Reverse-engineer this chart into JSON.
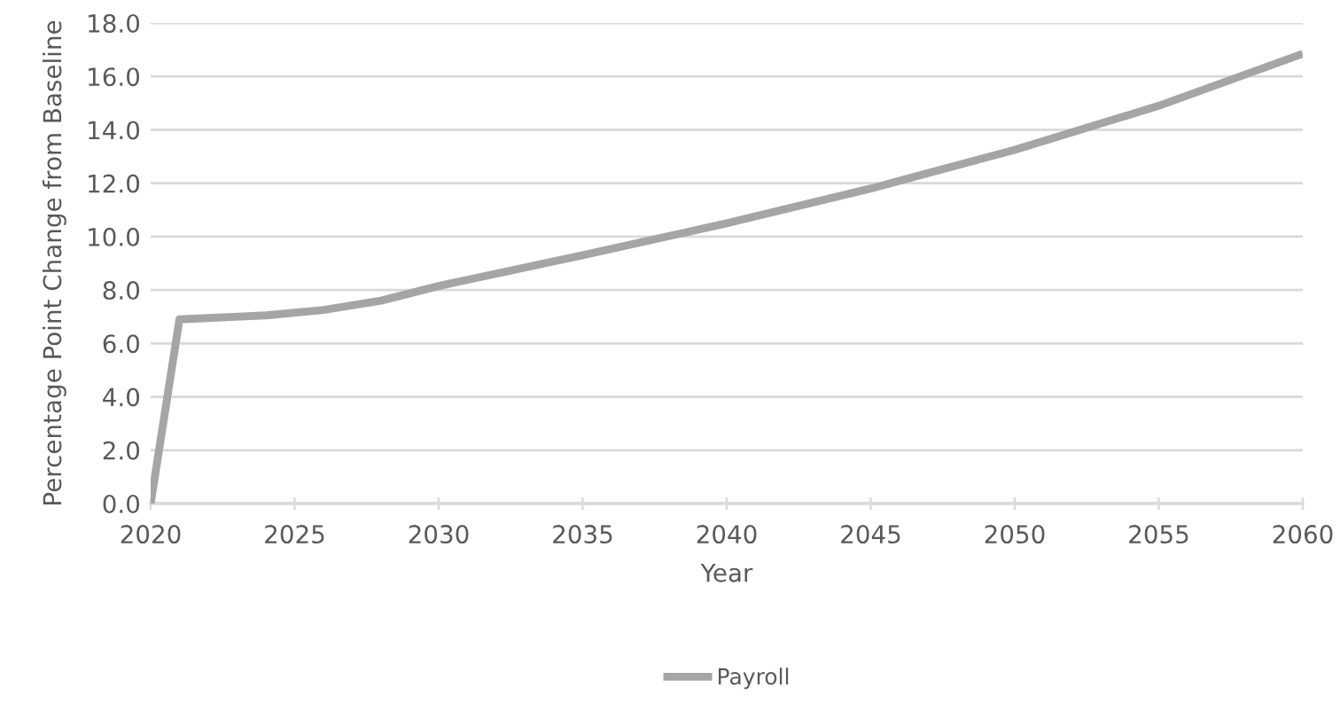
{
  "chart_data": {
    "type": "line",
    "xlabel": "Year",
    "ylabel": "Percentage Point Change from Baseline",
    "x": [
      2020,
      2021,
      2022,
      2024,
      2026,
      2028,
      2030,
      2035,
      2040,
      2045,
      2050,
      2055,
      2060
    ],
    "series": [
      {
        "name": "Payroll",
        "color": "#a5a5a5",
        "values": [
          0,
          6.9,
          6.95,
          7.05,
          7.25,
          7.6,
          8.15,
          9.3,
          10.5,
          11.8,
          13.25,
          14.9,
          16.85
        ]
      }
    ],
    "xlim": [
      2020,
      2060
    ],
    "xticks": [
      2020,
      2025,
      2030,
      2035,
      2040,
      2045,
      2050,
      2055,
      2060
    ],
    "ylim": [
      0,
      18
    ],
    "yticks": [
      {
        "value": 0,
        "label": "0.0"
      },
      {
        "value": 2,
        "label": "2.0"
      },
      {
        "value": 4,
        "label": "4.0"
      },
      {
        "value": 6,
        "label": "6.0"
      },
      {
        "value": 8,
        "label": "8.0"
      },
      {
        "value": 10,
        "label": "10.0"
      },
      {
        "value": 12,
        "label": "12.0"
      },
      {
        "value": 14,
        "label": "14.0"
      },
      {
        "value": 16,
        "label": "16.0"
      },
      {
        "value": 18,
        "label": "18.0"
      }
    ],
    "grid": "y",
    "legend": "bottom",
    "line_style": "solid",
    "marker": "none"
  }
}
